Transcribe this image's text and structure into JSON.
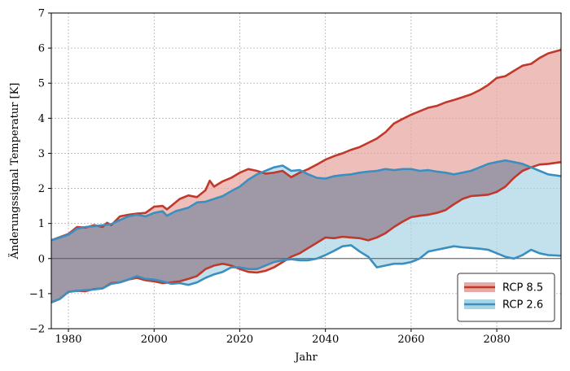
{
  "chart_data": {
    "type": "area",
    "xlabel": "Jahr",
    "ylabel": "Änderungssignal Temperatur [K]",
    "xlim": [
      1976,
      2095
    ],
    "ylim": [
      -2,
      7
    ],
    "xticks": [
      1980,
      2000,
      2020,
      2040,
      2060,
      2080
    ],
    "xtick_labels": [
      "1980",
      "2000",
      "2020",
      "2040",
      "2060",
      "2080"
    ],
    "yticks": [
      -2,
      -1,
      0,
      1,
      2,
      3,
      4,
      5,
      6,
      7
    ],
    "ytick_labels": [
      "−2",
      "−1",
      "0",
      "1",
      "2",
      "3",
      "4",
      "5",
      "6",
      "7"
    ],
    "grid": true,
    "zero_line": true,
    "legend_position": "bottom-right",
    "series": [
      {
        "name": "RCP 8.5",
        "line_color": "#c0392b",
        "fill_color": "#e8a9a3",
        "upper": [
          [
            1976,
            0.52
          ],
          [
            1980,
            0.7
          ],
          [
            1982,
            0.9
          ],
          [
            1984,
            0.88
          ],
          [
            1986,
            0.95
          ],
          [
            1988,
            0.9
          ],
          [
            1989,
            1.02
          ],
          [
            1990,
            0.95
          ],
          [
            1992,
            1.2
          ],
          [
            1994,
            1.25
          ],
          [
            1996,
            1.28
          ],
          [
            1998,
            1.3
          ],
          [
            2000,
            1.48
          ],
          [
            2002,
            1.5
          ],
          [
            2003,
            1.4
          ],
          [
            2005,
            1.6
          ],
          [
            2006,
            1.7
          ],
          [
            2008,
            1.8
          ],
          [
            2010,
            1.75
          ],
          [
            2012,
            1.95
          ],
          [
            2013,
            2.22
          ],
          [
            2014,
            2.05
          ],
          [
            2016,
            2.2
          ],
          [
            2018,
            2.3
          ],
          [
            2020,
            2.45
          ],
          [
            2022,
            2.55
          ],
          [
            2024,
            2.5
          ],
          [
            2026,
            2.42
          ],
          [
            2028,
            2.45
          ],
          [
            2030,
            2.5
          ],
          [
            2032,
            2.32
          ],
          [
            2034,
            2.45
          ],
          [
            2036,
            2.55
          ],
          [
            2038,
            2.68
          ],
          [
            2040,
            2.82
          ],
          [
            2042,
            2.92
          ],
          [
            2044,
            3.0
          ],
          [
            2046,
            3.1
          ],
          [
            2048,
            3.18
          ],
          [
            2050,
            3.3
          ],
          [
            2052,
            3.42
          ],
          [
            2054,
            3.6
          ],
          [
            2056,
            3.85
          ],
          [
            2058,
            3.98
          ],
          [
            2060,
            4.1
          ],
          [
            2062,
            4.2
          ],
          [
            2064,
            4.3
          ],
          [
            2066,
            4.35
          ],
          [
            2068,
            4.45
          ],
          [
            2070,
            4.52
          ],
          [
            2072,
            4.6
          ],
          [
            2074,
            4.68
          ],
          [
            2076,
            4.8
          ],
          [
            2078,
            4.95
          ],
          [
            2080,
            5.15
          ],
          [
            2082,
            5.2
          ],
          [
            2084,
            5.35
          ],
          [
            2086,
            5.5
          ],
          [
            2088,
            5.55
          ],
          [
            2090,
            5.72
          ],
          [
            2092,
            5.85
          ],
          [
            2095,
            5.95
          ]
        ],
        "lower": [
          [
            1976,
            -1.25
          ],
          [
            1978,
            -1.15
          ],
          [
            1980,
            -0.95
          ],
          [
            1982,
            -0.92
          ],
          [
            1984,
            -0.93
          ],
          [
            1986,
            -0.87
          ],
          [
            1988,
            -0.85
          ],
          [
            1990,
            -0.7
          ],
          [
            1992,
            -0.68
          ],
          [
            1994,
            -0.6
          ],
          [
            1996,
            -0.55
          ],
          [
            1998,
            -0.62
          ],
          [
            2000,
            -0.65
          ],
          [
            2002,
            -0.7
          ],
          [
            2004,
            -0.68
          ],
          [
            2006,
            -0.65
          ],
          [
            2008,
            -0.58
          ],
          [
            2010,
            -0.5
          ],
          [
            2012,
            -0.3
          ],
          [
            2014,
            -0.2
          ],
          [
            2016,
            -0.15
          ],
          [
            2018,
            -0.2
          ],
          [
            2020,
            -0.3
          ],
          [
            2022,
            -0.38
          ],
          [
            2024,
            -0.4
          ],
          [
            2026,
            -0.35
          ],
          [
            2028,
            -0.25
          ],
          [
            2030,
            -0.1
          ],
          [
            2032,
            0.05
          ],
          [
            2034,
            0.15
          ],
          [
            2036,
            0.3
          ],
          [
            2038,
            0.45
          ],
          [
            2040,
            0.6
          ],
          [
            2042,
            0.58
          ],
          [
            2044,
            0.62
          ],
          [
            2046,
            0.6
          ],
          [
            2048,
            0.58
          ],
          [
            2050,
            0.52
          ],
          [
            2052,
            0.6
          ],
          [
            2054,
            0.72
          ],
          [
            2056,
            0.9
          ],
          [
            2058,
            1.05
          ],
          [
            2060,
            1.18
          ],
          [
            2062,
            1.22
          ],
          [
            2064,
            1.25
          ],
          [
            2066,
            1.3
          ],
          [
            2068,
            1.38
          ],
          [
            2070,
            1.55
          ],
          [
            2072,
            1.7
          ],
          [
            2074,
            1.78
          ],
          [
            2076,
            1.8
          ],
          [
            2078,
            1.82
          ],
          [
            2080,
            1.9
          ],
          [
            2082,
            2.05
          ],
          [
            2084,
            2.3
          ],
          [
            2086,
            2.5
          ],
          [
            2088,
            2.6
          ],
          [
            2090,
            2.68
          ],
          [
            2092,
            2.7
          ],
          [
            2095,
            2.75
          ]
        ]
      },
      {
        "name": "RCP 2.6",
        "line_color": "#3a8fc0",
        "fill_color": "#a9d4e4",
        "upper": [
          [
            1976,
            0.52
          ],
          [
            1980,
            0.68
          ],
          [
            1982,
            0.85
          ],
          [
            1984,
            0.9
          ],
          [
            1986,
            0.92
          ],
          [
            1988,
            0.95
          ],
          [
            1990,
            0.98
          ],
          [
            1992,
            1.1
          ],
          [
            1994,
            1.2
          ],
          [
            1996,
            1.25
          ],
          [
            1998,
            1.2
          ],
          [
            2000,
            1.3
          ],
          [
            2002,
            1.35
          ],
          [
            2003,
            1.22
          ],
          [
            2005,
            1.35
          ],
          [
            2008,
            1.45
          ],
          [
            2010,
            1.6
          ],
          [
            2012,
            1.62
          ],
          [
            2014,
            1.7
          ],
          [
            2016,
            1.78
          ],
          [
            2018,
            1.92
          ],
          [
            2020,
            2.05
          ],
          [
            2022,
            2.25
          ],
          [
            2024,
            2.4
          ],
          [
            2026,
            2.5
          ],
          [
            2028,
            2.6
          ],
          [
            2030,
            2.65
          ],
          [
            2032,
            2.5
          ],
          [
            2034,
            2.52
          ],
          [
            2036,
            2.4
          ],
          [
            2038,
            2.3
          ],
          [
            2040,
            2.28
          ],
          [
            2042,
            2.35
          ],
          [
            2044,
            2.38
          ],
          [
            2046,
            2.4
          ],
          [
            2048,
            2.45
          ],
          [
            2050,
            2.48
          ],
          [
            2052,
            2.5
          ],
          [
            2054,
            2.55
          ],
          [
            2056,
            2.52
          ],
          [
            2058,
            2.55
          ],
          [
            2060,
            2.55
          ],
          [
            2062,
            2.5
          ],
          [
            2064,
            2.52
          ],
          [
            2066,
            2.48
          ],
          [
            2068,
            2.45
          ],
          [
            2070,
            2.4
          ],
          [
            2072,
            2.45
          ],
          [
            2074,
            2.5
          ],
          [
            2076,
            2.6
          ],
          [
            2078,
            2.7
          ],
          [
            2080,
            2.75
          ],
          [
            2082,
            2.8
          ],
          [
            2084,
            2.75
          ],
          [
            2086,
            2.7
          ],
          [
            2088,
            2.6
          ],
          [
            2090,
            2.5
          ],
          [
            2092,
            2.4
          ],
          [
            2095,
            2.35
          ]
        ],
        "lower": [
          [
            1976,
            -1.25
          ],
          [
            1978,
            -1.15
          ],
          [
            1980,
            -0.95
          ],
          [
            1982,
            -0.92
          ],
          [
            1984,
            -0.9
          ],
          [
            1986,
            -0.88
          ],
          [
            1988,
            -0.85
          ],
          [
            1990,
            -0.72
          ],
          [
            1992,
            -0.68
          ],
          [
            1994,
            -0.6
          ],
          [
            1996,
            -0.5
          ],
          [
            1998,
            -0.58
          ],
          [
            2000,
            -0.6
          ],
          [
            2002,
            -0.65
          ],
          [
            2004,
            -0.72
          ],
          [
            2006,
            -0.7
          ],
          [
            2008,
            -0.75
          ],
          [
            2010,
            -0.68
          ],
          [
            2012,
            -0.55
          ],
          [
            2014,
            -0.45
          ],
          [
            2016,
            -0.38
          ],
          [
            2018,
            -0.25
          ],
          [
            2020,
            -0.25
          ],
          [
            2022,
            -0.3
          ],
          [
            2024,
            -0.3
          ],
          [
            2026,
            -0.2
          ],
          [
            2028,
            -0.1
          ],
          [
            2030,
            -0.05
          ],
          [
            2032,
            -0.02
          ],
          [
            2034,
            -0.05
          ],
          [
            2036,
            -0.05
          ],
          [
            2038,
            0.0
          ],
          [
            2040,
            0.1
          ],
          [
            2042,
            0.22
          ],
          [
            2044,
            0.35
          ],
          [
            2046,
            0.38
          ],
          [
            2048,
            0.2
          ],
          [
            2050,
            0.05
          ],
          [
            2052,
            -0.25
          ],
          [
            2054,
            -0.2
          ],
          [
            2056,
            -0.15
          ],
          [
            2058,
            -0.15
          ],
          [
            2060,
            -0.1
          ],
          [
            2062,
            0.0
          ],
          [
            2064,
            0.2
          ],
          [
            2066,
            0.25
          ],
          [
            2068,
            0.3
          ],
          [
            2070,
            0.35
          ],
          [
            2072,
            0.32
          ],
          [
            2074,
            0.3
          ],
          [
            2076,
            0.28
          ],
          [
            2078,
            0.25
          ],
          [
            2080,
            0.15
          ],
          [
            2082,
            0.05
          ],
          [
            2084,
            0.0
          ],
          [
            2086,
            0.1
          ],
          [
            2088,
            0.25
          ],
          [
            2090,
            0.15
          ],
          [
            2092,
            0.1
          ],
          [
            2095,
            0.08
          ]
        ]
      }
    ]
  }
}
